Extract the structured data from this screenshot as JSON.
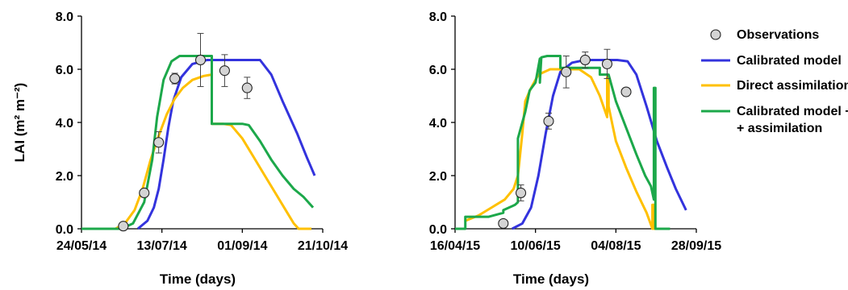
{
  "chart_data": [
    {
      "type": "line",
      "ylabel": "LAI (m² m⁻²)",
      "xlabel": "Time (days)",
      "xlim": [
        "24/05/14",
        "21/10/14"
      ],
      "ylim": [
        0,
        8
      ],
      "x_ticks": [
        "24/05/14",
        "13/07/14",
        "01/09/14",
        "21/10/14"
      ],
      "y_ticks": [
        "0.0",
        "2.0",
        "4.0",
        "6.0",
        "8.0"
      ],
      "grid": false,
      "series": [
        {
          "name": "Calibrated model",
          "color": "#3333dd",
          "x": [
            "28/06/14",
            "04/07/14",
            "08/07/14",
            "11/07/14",
            "14/07/14",
            "17/07/14",
            "20/07/14",
            "25/07/14",
            "01/08/14",
            "10/08/14",
            "20/08/14",
            "25/08/14",
            "30/08/14",
            "05/09/14",
            "12/09/14",
            "19/09/14",
            "26/09/14",
            "05/10/14",
            "11/10/14",
            "16/10/14"
          ],
          "y": [
            0.0,
            0.3,
            0.8,
            1.5,
            2.6,
            3.8,
            4.8,
            5.7,
            6.2,
            6.35,
            6.35,
            6.35,
            6.35,
            6.35,
            6.35,
            5.8,
            4.8,
            3.6,
            2.7,
            2.0
          ]
        },
        {
          "name": "Direct assimilation",
          "color": "#ffc000",
          "x": [
            "14/06/14",
            "20/06/14",
            "26/06/14",
            "01/07/14",
            "06/07/14",
            "11/07/14",
            "16/07/14",
            "21/07/14",
            "26/07/14",
            "01/08/14",
            "08/08/14",
            "13/08/14",
            "13/08/14",
            "20/08/14",
            "25/08/14",
            "01/09/14",
            "08/09/14",
            "15/09/14",
            "22/09/14",
            "29/09/14",
            "03/10/14",
            "06/10/14",
            "14/10/14"
          ],
          "y": [
            0.0,
            0.2,
            0.7,
            1.5,
            2.6,
            3.5,
            4.3,
            4.9,
            5.3,
            5.6,
            5.75,
            5.8,
            3.95,
            3.95,
            3.9,
            3.4,
            2.7,
            2.0,
            1.3,
            0.6,
            0.2,
            0.0,
            0.0
          ]
        },
        {
          "name": "Calibrated model +\n+ assimilation",
          "color": "#1ca84a",
          "x": [
            "24/05/14",
            "18/06/14",
            "25/06/14",
            "02/07/14",
            "07/07/14",
            "10/07/14",
            "14/07/14",
            "19/07/14",
            "24/07/14",
            "29/07/14",
            "08/08/14",
            "13/08/14",
            "13/08/14",
            "20/08/14",
            "01/09/14",
            "05/09/14",
            "12/09/14",
            "19/09/14",
            "26/09/14",
            "03/10/14",
            "09/10/14",
            "15/10/14"
          ],
          "y": [
            0.0,
            0.0,
            0.2,
            1.0,
            2.6,
            4.2,
            5.6,
            6.3,
            6.5,
            6.5,
            6.5,
            6.5,
            3.95,
            3.95,
            3.95,
            3.9,
            3.3,
            2.6,
            2.0,
            1.5,
            1.2,
            0.8
          ]
        }
      ],
      "observations": {
        "name": "Observations",
        "x": [
          "19/06/14",
          "02/07/14",
          "11/07/14",
          "21/07/14",
          "06/08/14",
          "21/08/14",
          "04/09/14"
        ],
        "y": [
          0.1,
          1.35,
          3.25,
          5.65,
          6.35,
          5.95,
          5.3
        ],
        "error": [
          0,
          0,
          0.4,
          0.2,
          1.0,
          0.6,
          0.4
        ]
      }
    },
    {
      "type": "line",
      "ylabel": "",
      "xlabel": "Time (days)",
      "xlim": [
        "16/04/15",
        "28/09/15"
      ],
      "ylim": [
        0,
        8
      ],
      "x_ticks": [
        "16/04/15",
        "10/06/15",
        "04/08/15",
        "28/09/15"
      ],
      "y_ticks": [
        "0.0",
        "2.0",
        "4.0",
        "6.0",
        "8.0"
      ],
      "grid": false,
      "series": [
        {
          "name": "Calibrated model",
          "color": "#3333dd",
          "x": [
            "25/05/15",
            "01/06/15",
            "07/06/15",
            "12/06/15",
            "17/06/15",
            "22/06/15",
            "27/06/15",
            "05/07/15",
            "14/07/15",
            "25/07/15",
            "05/08/15",
            "12/08/15",
            "18/08/15",
            "25/08/15",
            "01/09/15",
            "08/09/15",
            "14/09/15",
            "21/09/15"
          ],
          "y": [
            0.0,
            0.2,
            0.8,
            2.0,
            3.6,
            5.0,
            5.9,
            6.25,
            6.35,
            6.35,
            6.35,
            6.3,
            5.8,
            4.6,
            3.3,
            2.3,
            1.5,
            0.7
          ]
        },
        {
          "name": "Direct assimilation",
          "color": "#ffc000",
          "x": [
            "23/04/15",
            "02/05/15",
            "11/05/15",
            "20/05/15",
            "26/05/15",
            "29/05/15",
            "01/06/15",
            "03/06/15",
            "07/06/15",
            "12/06/15",
            "20/06/15",
            "28/06/15",
            "10/07/15",
            "18/07/15",
            "24/07/15",
            "29/07/15",
            "29/07/15",
            "30/07/15",
            "30/07/15",
            "04/08/15",
            "11/08/15",
            "18/08/15",
            "25/08/15",
            "29/08/15",
            "29/08/15",
            "30/08/15",
            "30/08/15",
            "02/09/15"
          ],
          "y": [
            0.3,
            0.5,
            0.8,
            1.1,
            1.5,
            2.0,
            3.6,
            4.8,
            5.3,
            5.8,
            6.0,
            6.0,
            6.0,
            5.7,
            5.0,
            4.2,
            5.7,
            5.7,
            4.6,
            3.3,
            2.3,
            1.4,
            0.6,
            0.0,
            0.9,
            0.9,
            0.0,
            0.0
          ]
        },
        {
          "name": "Calibrated model +\n+ assimilation",
          "color": "#1ca84a",
          "x": [
            "16/04/15",
            "23/04/15",
            "23/04/15",
            "09/05/15",
            "19/05/15",
            "19/05/15",
            "27/05/15",
            "29/05/15",
            "29/05/15",
            "03/06/15",
            "06/06/15",
            "10/06/15",
            "13/06/15",
            "13/06/15",
            "14/06/15",
            "18/06/15",
            "27/06/15",
            "27/06/15",
            "14/07/15",
            "24/07/15",
            "24/07/15",
            "30/07/15",
            "30/07/15",
            "04/08/15",
            "11/08/15",
            "18/08/15",
            "24/08/15",
            "28/08/15",
            "30/08/15",
            "30/08/15",
            "31/08/15",
            "31/08/15",
            "10/09/15"
          ],
          "y": [
            0.0,
            0.0,
            0.45,
            0.45,
            0.6,
            0.7,
            0.9,
            1.0,
            3.4,
            4.4,
            5.2,
            5.5,
            6.4,
            5.5,
            6.45,
            6.5,
            6.5,
            6.05,
            6.05,
            6.05,
            5.8,
            5.8,
            5.8,
            4.8,
            3.8,
            2.8,
            2.0,
            1.6,
            1.1,
            5.3,
            5.3,
            0.0,
            0.0
          ]
        }
      ],
      "observations": {
        "name": "Observations",
        "x": [
          "19/05/15",
          "31/05/15",
          "19/06/15",
          "01/07/15",
          "14/07/15",
          "29/07/15",
          "11/08/15"
        ],
        "y": [
          0.2,
          1.35,
          4.05,
          5.9,
          6.35,
          6.2,
          5.15
        ],
        "error": [
          0,
          0.3,
          0.3,
          0.6,
          0.3,
          0.55,
          0.15
        ]
      }
    }
  ],
  "legend": {
    "placement": "right",
    "items": [
      {
        "key": "obs",
        "label": "Observations",
        "line2": ""
      },
      {
        "key": "cal",
        "label": "Calibrated model",
        "line2": "",
        "color": "#3333dd"
      },
      {
        "key": "da",
        "label": "Direct assimilation",
        "line2": "",
        "color": "#ffc000"
      },
      {
        "key": "cma",
        "label": "Calibrated model +",
        "line2": "+ assimilation",
        "color": "#1ca84a"
      }
    ]
  }
}
